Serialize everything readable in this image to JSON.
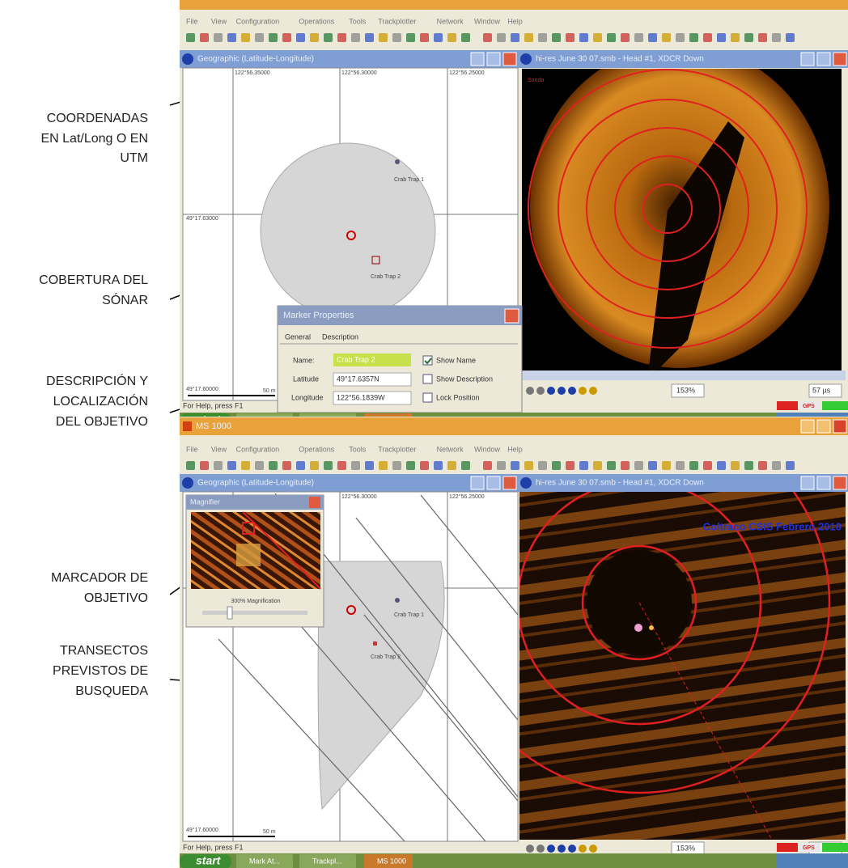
{
  "annotations": [
    {
      "lines": [
        "COORDENADAS",
        "EN Lat/Long O EN",
        "UTM"
      ]
    },
    {
      "lines": [
        "COBERTURA DEL",
        "SÓNAR"
      ]
    },
    {
      "lines": [
        "DESCRIPCIÓN Y",
        "LOCALIZACIÓN",
        "DEL OBJETIVO"
      ]
    },
    {
      "lines": [
        "MARCADOR DE",
        "OBJETIVO"
      ]
    },
    {
      "lines": [
        "TRANSECTOS",
        "PREVISTOS DE",
        "BUSQUEDA"
      ]
    }
  ],
  "menu": [
    "File",
    "View",
    "Configuration",
    "Operations",
    "Tools",
    "Trackplotter",
    "Network",
    "Window",
    "Help"
  ],
  "taskbar": [
    "start",
    "Mark At...",
    "Trackpl...",
    "MS 1000"
  ],
  "top": {
    "map_title": "Geographic (Latitude-Longitude)",
    "sonar_title": "hi-res June 30 07.smb - Head #1, XDCR Down",
    "sonar_label": "Sonda",
    "coords_x": [
      "122°56.35000",
      "122°56.30000",
      "122°56.25000"
    ],
    "coord_y": "49°17.63000",
    "markers": [
      "Crab Trap 1",
      "Crab Trap 2"
    ],
    "scale_coord": "49°17.60000",
    "scale": "50 m",
    "dialog": {
      "title": "Marker Properties",
      "tabs": [
        "General",
        "Description"
      ],
      "name_label": "Name:",
      "name_value": "Crab Trap 2",
      "lat_label": "Latitude",
      "lat_value": "49°17.6357N",
      "lon_label": "Longitude",
      "lon_value": "122°56.1839W",
      "checks": [
        {
          "label": "Show Name",
          "checked": true
        },
        {
          "label": "Show Description",
          "checked": false
        },
        {
          "label": "Lock Position",
          "checked": false
        }
      ]
    },
    "zoom": "153%",
    "range": "57 µs",
    "status": "For Help, press F1",
    "gps": "GPS"
  },
  "bottom": {
    "app_title": "MS 1000",
    "map_title": "Geographic (Latitude-Longitude)",
    "sonar_title": "hi-res June 30 07.smb - Head #1, XDCR Down",
    "coords_x": [
      "122°56.30000",
      "122°56.25000"
    ],
    "coord_y": "49°17.63000",
    "markers": [
      "Crab Trap 1",
      "Crab Trap 2"
    ],
    "scale_coord": "49°17.60000",
    "scale": "50 m",
    "magnifier_title": "Magnifier",
    "magnification": "300% Magnification",
    "watermark": "Coltraco CSIS Febrero 2010",
    "zoom": "153%",
    "range": "20 µs",
    "status": "For Help, press F1",
    "gps": "GPS"
  }
}
